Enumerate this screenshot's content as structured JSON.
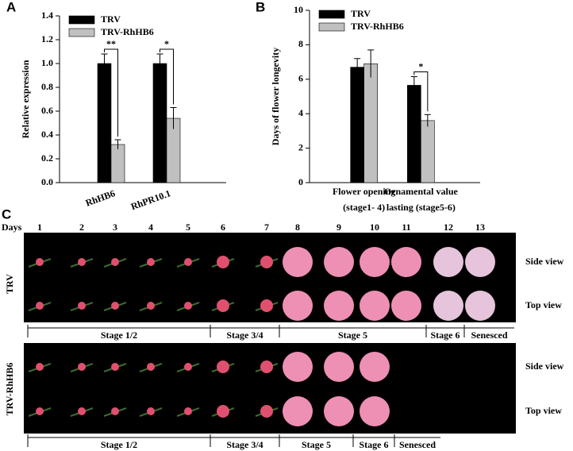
{
  "chart_data": [
    {
      "type": "bar",
      "panel_label": "A",
      "ylabel": "Relative expression",
      "categories": [
        "RhHB6",
        "RhPR10.1"
      ],
      "series": [
        {
          "name": "TRV",
          "color": "#000000",
          "values": [
            1.0,
            1.0
          ],
          "errors": [
            0.08,
            0.08
          ]
        },
        {
          "name": "TRV-RhHB6",
          "color": "#c0c0c0",
          "values": [
            0.32,
            0.54
          ],
          "errors": [
            0.04,
            0.09
          ]
        }
      ],
      "ylim": [
        0,
        1.4
      ],
      "yticks": [
        {
          "value": 0,
          "label": "0.0"
        },
        0.2,
        0.4,
        0.6,
        0.8,
        {
          "value": 1,
          "label": "1.0"
        },
        1.2,
        1.4
      ],
      "annotations": [
        {
          "category": 0,
          "label": "**"
        },
        {
          "category": 1,
          "label": "*"
        }
      ]
    },
    {
      "type": "bar",
      "panel_label": "B",
      "ylabel": "Days of flower longevity",
      "categories": [
        [
          "Flower opening",
          "(stage1- 4)"
        ],
        [
          "Ornamental value",
          "lasting (stage5-6)"
        ]
      ],
      "series": [
        {
          "name": "TRV",
          "color": "#000000",
          "values": [
            6.7,
            5.65
          ],
          "errors": [
            0.5,
            0.5
          ]
        },
        {
          "name": "TRV-RhHB6",
          "color": "#c0c0c0",
          "values": [
            6.9,
            3.6
          ],
          "errors": [
            0.8,
            0.35
          ]
        }
      ],
      "ylim": [
        0,
        10
      ],
      "yticks": [
        0,
        2,
        4,
        6,
        8,
        10
      ],
      "annotations": [
        {
          "category": 1,
          "label": "*"
        }
      ]
    }
  ],
  "panel_c": {
    "label": "C",
    "days_label": "Days",
    "days": [
      "1",
      "2",
      "3",
      "4",
      "5",
      "6",
      "7",
      "8",
      "9",
      "10",
      "11",
      "12",
      "13"
    ],
    "rows": [
      {
        "name": "TRV",
        "views": [
          "Side view",
          "Top view"
        ],
        "stages": [
          "Stage 1/2",
          "Stage 3/4",
          "Stage 5",
          "Stage 6",
          "Senesced"
        ]
      },
      {
        "name": "TRV-RhHB6",
        "views": [
          "Side view",
          "Top view"
        ],
        "stages": [
          "Stage 1/2",
          "Stage 3/4",
          "Stage 5",
          "Stage 6",
          "Senesced"
        ]
      }
    ]
  }
}
